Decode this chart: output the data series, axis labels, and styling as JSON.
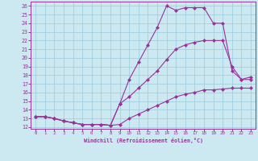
{
  "xlabel": "Windchill (Refroidissement éolien,°C)",
  "bg_color": "#cce8f0",
  "line_color": "#993399",
  "grid_color": "#99ccdd",
  "xlim": [
    -0.5,
    23.5
  ],
  "ylim": [
    11.8,
    26.5
  ],
  "xticks": [
    0,
    1,
    2,
    3,
    4,
    5,
    6,
    7,
    8,
    9,
    10,
    11,
    12,
    13,
    14,
    15,
    16,
    17,
    18,
    19,
    20,
    21,
    22,
    23
  ],
  "yticks": [
    12,
    13,
    14,
    15,
    16,
    17,
    18,
    19,
    20,
    21,
    22,
    23,
    24,
    25,
    26
  ],
  "curve1_x": [
    0,
    1,
    2,
    3,
    4,
    5,
    6,
    7,
    8,
    9,
    10,
    11,
    12,
    13,
    14,
    15,
    16,
    17,
    18,
    19,
    20,
    21,
    22,
    23
  ],
  "curve1_y": [
    13.2,
    13.2,
    13.0,
    12.7,
    12.5,
    12.3,
    12.3,
    12.3,
    12.2,
    12.3,
    13.0,
    13.5,
    14.0,
    14.5,
    15.0,
    15.5,
    15.8,
    16.0,
    16.3,
    16.3,
    16.4,
    16.5,
    16.5,
    16.5
  ],
  "curve2_x": [
    0,
    1,
    2,
    3,
    4,
    5,
    6,
    7,
    8,
    9,
    10,
    11,
    12,
    13,
    14,
    15,
    16,
    17,
    18,
    19,
    20,
    21,
    22,
    23
  ],
  "curve2_y": [
    13.2,
    13.2,
    13.0,
    12.7,
    12.5,
    12.3,
    12.3,
    12.3,
    12.2,
    14.7,
    15.5,
    16.5,
    17.5,
    18.5,
    19.8,
    21.0,
    21.5,
    21.8,
    22.0,
    22.0,
    22.0,
    19.0,
    17.5,
    17.8
  ],
  "curve3_x": [
    0,
    1,
    2,
    3,
    4,
    5,
    6,
    7,
    8,
    9,
    10,
    11,
    12,
    13,
    14,
    15,
    16,
    17,
    18,
    19,
    20,
    21,
    22,
    23
  ],
  "curve3_y": [
    13.2,
    13.2,
    13.0,
    12.7,
    12.5,
    12.3,
    12.3,
    12.3,
    12.2,
    14.7,
    17.5,
    19.5,
    21.5,
    23.5,
    26.0,
    25.5,
    25.8,
    25.8,
    25.8,
    24.0,
    24.0,
    18.5,
    17.5,
    17.5
  ]
}
